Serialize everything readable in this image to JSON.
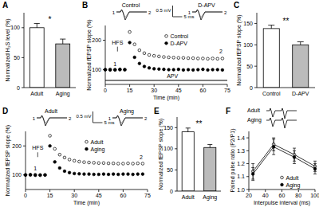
{
  "chart_data": [
    {
      "type": "bar",
      "title": "A",
      "ylabel": "Normalized H₂S level (%)",
      "categories": [
        "Adult",
        "Aging"
      ],
      "values": [
        100,
        73
      ],
      "errors": [
        7,
        8
      ],
      "colors": [
        "#ffffff",
        "#bbbbbb"
      ],
      "ylim": [
        0,
        125
      ],
      "yticks": [
        0,
        50,
        100
      ],
      "annotations": {
        "significance": "*"
      }
    },
    {
      "type": "scatter",
      "title": "B",
      "xlabel": "Time (min)",
      "ylabel": "Normalized fEPSP slope (%)",
      "x": [
        0,
        3,
        6,
        9,
        12,
        15,
        18,
        21,
        24,
        27,
        30,
        33,
        36,
        39,
        42,
        45,
        48,
        51,
        54,
        57,
        60,
        63,
        66,
        69,
        72
      ],
      "series": [
        {
          "name": "Control",
          "color": "#000000",
          "marker": "open-circle",
          "values": [
            100,
            101,
            99,
            100,
            100,
            228,
            186,
            166,
            156,
            150,
            147,
            145,
            143,
            142,
            141,
            140,
            140,
            139,
            139,
            138,
            138,
            137,
            138,
            137,
            138
          ]
        },
        {
          "name": "D-APV",
          "color": "#000000",
          "marker": "filled-circle",
          "values": [
            100,
            99,
            100,
            101,
            100,
            192,
            142,
            121,
            111,
            106,
            103,
            102,
            101,
            100,
            100,
            101,
            99,
            100,
            99,
            100,
            101,
            99,
            100,
            100,
            99
          ]
        }
      ],
      "xlim": [
        0,
        75
      ],
      "xticks": [
        0,
        15,
        30,
        45,
        60,
        75
      ],
      "ylim": [
        50,
        250
      ],
      "yticks": [
        100,
        200
      ],
      "legend": "right",
      "annotations": {
        "hfs": "HFS",
        "before": "1",
        "after": "2",
        "scale_y": "0.5 mV",
        "scale_x": "5 ms",
        "drug": "APV"
      }
    },
    {
      "type": "bar",
      "title": "C",
      "ylabel": "Normalized fEPSP slope (%)",
      "categories": [
        "Control",
        "D-APV"
      ],
      "values": [
        138,
        100
      ],
      "errors": [
        8,
        7
      ],
      "colors": [
        "#ffffff",
        "#bbbbbb"
      ],
      "ylim": [
        0,
        175
      ],
      "yticks": [
        0,
        50,
        100,
        150
      ],
      "annotations": {
        "significance": "**"
      }
    },
    {
      "type": "scatter",
      "title": "D",
      "xlabel": "Time (min)",
      "ylabel": "Normalized fEPSP slope (%)",
      "x": [
        0,
        3,
        6,
        9,
        12,
        15,
        18,
        21,
        24,
        27,
        30,
        33,
        36,
        39,
        42,
        45,
        48,
        51,
        54,
        57,
        60,
        63,
        66,
        69,
        72
      ],
      "series": [
        {
          "name": "Adult",
          "color": "#000000",
          "marker": "open-circle",
          "values": [
            100,
            100,
            101,
            99,
            100,
            235,
            190,
            170,
            160,
            153,
            149,
            146,
            144,
            143,
            142,
            141,
            141,
            140,
            140,
            139,
            139,
            140,
            139,
            140,
            139
          ]
        },
        {
          "name": "Aging",
          "color": "#000000",
          "marker": "filled-circle",
          "values": [
            100,
            101,
            99,
            100,
            100,
            200,
            145,
            124,
            113,
            108,
            105,
            104,
            103,
            103,
            102,
            102,
            103,
            102,
            103,
            102,
            103,
            103,
            102,
            103,
            103
          ]
        }
      ],
      "xlim": [
        0,
        75
      ],
      "xticks": [
        0,
        15,
        30,
        45,
        60,
        75
      ],
      "ylim": [
        50,
        250
      ],
      "yticks": [
        100,
        200
      ],
      "legend": "right",
      "annotations": {
        "hfs": "HFS",
        "before": "1",
        "after": "2",
        "scale_y": "0.5 mV",
        "scale_x": "5 ms"
      }
    },
    {
      "type": "bar",
      "title": "E",
      "ylabel": "Normalized fEPSP slope (%)",
      "categories": [
        "Adult",
        "Aging"
      ],
      "values": [
        140,
        103
      ],
      "errors": [
        9,
        7
      ],
      "colors": [
        "#ffffff",
        "#bbbbbb"
      ],
      "ylim": [
        0,
        175
      ],
      "yticks": [
        0,
        50,
        100,
        150
      ],
      "annotations": {
        "significance": "**"
      }
    },
    {
      "type": "line",
      "title": "F",
      "xlabel": "Interpulse interval (ms)",
      "ylabel": "Paired pulse ratio (P2/P1)",
      "x": [
        25,
        50,
        75,
        100
      ],
      "series": [
        {
          "name": "Adult",
          "color": "#000000",
          "marker": "open-circle",
          "values": [
            1.14,
            1.35,
            1.27,
            1.18
          ],
          "errors": [
            0.06,
            0.05,
            0.05,
            0.04
          ]
        },
        {
          "name": "Aging",
          "color": "#000000",
          "marker": "filled-circle",
          "values": [
            1.12,
            1.33,
            1.25,
            1.16
          ],
          "errors": [
            0.05,
            0.06,
            0.05,
            0.04
          ]
        }
      ],
      "xlim": [
        20,
        100
      ],
      "xticks": [
        20,
        40,
        60,
        80,
        100
      ],
      "ylim": [
        1,
        1.45
      ],
      "yticks": [
        {
          "value": 1,
          "label": "1.0"
        },
        1.1,
        1.2,
        1.3,
        {
          "value": 1.4,
          "label": "1.4"
        }
      ],
      "legend": "lower right"
    }
  ]
}
